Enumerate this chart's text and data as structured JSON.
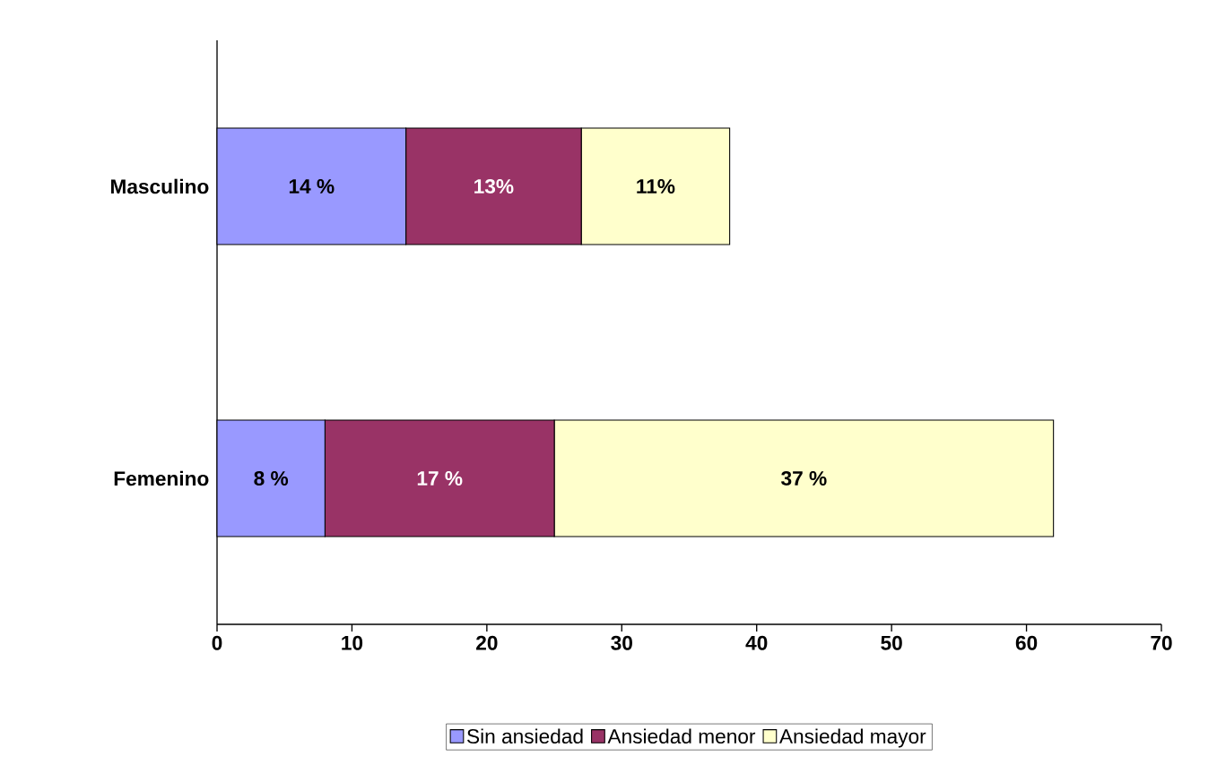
{
  "chart_data": {
    "type": "bar",
    "orientation": "horizontal",
    "stacked": true,
    "categories": [
      "Masculino",
      "Femenino"
    ],
    "series": [
      {
        "name": "Sin ansiedad",
        "color": "#9999ff",
        "values": [
          14,
          8
        ],
        "value_labels": [
          "14 %",
          "8 %"
        ]
      },
      {
        "name": "Ansiedad menor",
        "color": "#993366",
        "values": [
          13,
          17
        ],
        "value_labels": [
          "13%",
          "17 %"
        ]
      },
      {
        "name": "Ansiedad mayor",
        "color": "#ffffcc",
        "values": [
          11,
          37
        ],
        "value_labels": [
          "11%",
          "37 %"
        ]
      }
    ],
    "xlim": [
      0,
      70
    ],
    "xticks": [
      0,
      10,
      20,
      30,
      40,
      50,
      60,
      70
    ],
    "grid": false,
    "legend": "bottom"
  }
}
